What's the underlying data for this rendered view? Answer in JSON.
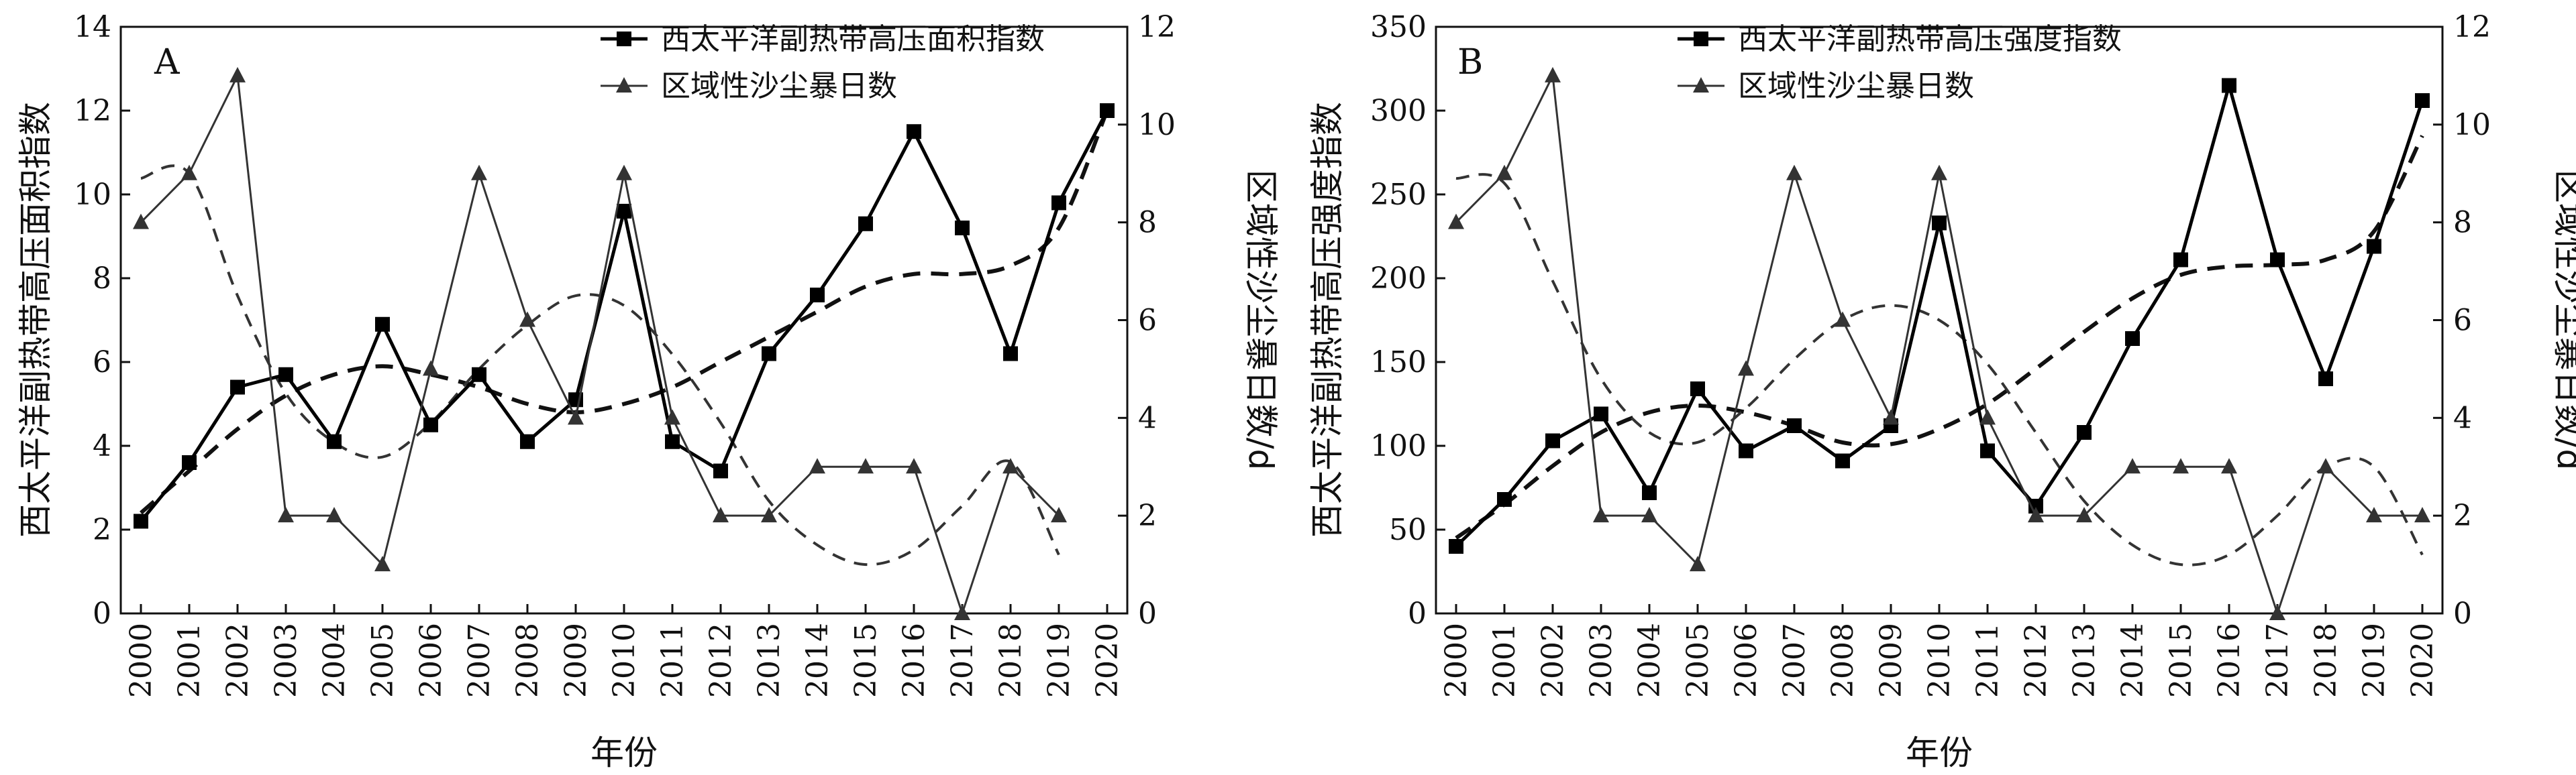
{
  "chart_data": [
    {
      "type": "line",
      "panel_label": "A",
      "title": "",
      "xlabel": "年份",
      "ylabel": "西太平洋副热带高压面积指数",
      "y2label": "区域性沙尘暴日数/d",
      "categories": [
        "2000",
        "2001",
        "2002",
        "2003",
        "2004",
        "2005",
        "2006",
        "2007",
        "2008",
        "2009",
        "2010",
        "2011",
        "2012",
        "2013",
        "2014",
        "2015",
        "2016",
        "2017",
        "2018",
        "2019",
        "2020"
      ],
      "ylim": [
        0,
        14
      ],
      "yticks": [
        0,
        2,
        4,
        6,
        8,
        10,
        12,
        14
      ],
      "y2lim": [
        0,
        12
      ],
      "y2ticks": [
        0,
        2,
        4,
        6,
        8,
        10,
        12
      ],
      "legend_position": "top-center",
      "grid": false,
      "series": [
        {
          "name": "西太平洋副热带高压面积指数",
          "axis": "left",
          "marker": "square",
          "color": "#000000",
          "values": [
            2.2,
            3.6,
            5.4,
            5.7,
            4.1,
            6.9,
            4.5,
            5.7,
            4.1,
            5.1,
            9.6,
            4.1,
            3.4,
            6.2,
            7.6,
            9.3,
            11.5,
            9.2,
            6.2,
            9.8,
            12.0
          ]
        },
        {
          "name": "区域性沙尘暴日数",
          "axis": "right",
          "marker": "triangle",
          "color": "#333333",
          "values": [
            8,
            9,
            11,
            2,
            2,
            1,
            5,
            9,
            6,
            4,
            9,
            4,
            2,
            2,
            3,
            3,
            3,
            0,
            3,
            2,
            null
          ]
        }
      ],
      "trend_lines": [
        {
          "axis": "left",
          "style": "dashed",
          "color": "#111111",
          "stroke": "thick",
          "values": [
            2.4,
            3.4,
            4.4,
            5.2,
            5.7,
            5.9,
            5.7,
            5.4,
            5.0,
            4.8,
            5.0,
            5.4,
            6.0,
            6.6,
            7.2,
            7.8,
            8.1,
            8.1,
            8.3,
            9.2,
            12.0
          ]
        },
        {
          "axis": "right",
          "style": "dashed",
          "color": "#333333",
          "stroke": "thin",
          "values": [
            8.9,
            9.0,
            6.5,
            4.5,
            3.5,
            3.2,
            3.9,
            5.0,
            5.9,
            6.5,
            6.3,
            5.3,
            3.9,
            2.3,
            1.4,
            1.0,
            1.3,
            2.2,
            3.1,
            1.2,
            null
          ]
        }
      ]
    },
    {
      "type": "line",
      "panel_label": "B",
      "title": "",
      "xlabel": "年份",
      "ylabel": "西太平洋副热带高压强度指数",
      "y2label": "区域性沙尘暴日数/d",
      "categories": [
        "2000",
        "2001",
        "2002",
        "2003",
        "2004",
        "2005",
        "2006",
        "2007",
        "2008",
        "2009",
        "2010",
        "2011",
        "2012",
        "2013",
        "2014",
        "2015",
        "2016",
        "2017",
        "2018",
        "2019",
        "2020"
      ],
      "ylim": [
        0,
        350
      ],
      "yticks": [
        0,
        50,
        100,
        150,
        200,
        250,
        300,
        350
      ],
      "y2lim": [
        0,
        12
      ],
      "y2ticks": [
        0,
        2,
        4,
        6,
        8,
        10,
        12
      ],
      "legend_position": "top-center",
      "grid": false,
      "series": [
        {
          "name": "西太平洋副热带高压强度指数",
          "axis": "left",
          "marker": "square",
          "color": "#000000",
          "values": [
            40,
            68,
            103,
            119,
            72,
            134,
            97,
            112,
            91,
            112,
            233,
            97,
            64,
            108,
            164,
            211,
            315,
            211,
            140,
            219,
            306
          ]
        },
        {
          "name": "区域性沙尘暴日数",
          "axis": "right",
          "marker": "triangle",
          "color": "#333333",
          "values": [
            8,
            9,
            11,
            2,
            2,
            1,
            5,
            9,
            6,
            4,
            9,
            4,
            2,
            2,
            3,
            3,
            3,
            0,
            3,
            2,
            2
          ]
        }
      ],
      "trend_lines": [
        {
          "axis": "left",
          "style": "dashed",
          "color": "#111111",
          "stroke": "thick",
          "values": [
            45,
            65,
            88,
            108,
            120,
            124,
            120,
            112,
            102,
            101,
            110,
            125,
            146,
            168,
            188,
            202,
            207,
            208,
            211,
            228,
            285
          ]
        },
        {
          "axis": "right",
          "style": "dashed",
          "color": "#333333",
          "stroke": "thin",
          "values": [
            8.9,
            8.8,
            6.8,
            4.8,
            3.7,
            3.5,
            4.2,
            5.2,
            6.0,
            6.3,
            6.0,
            5.1,
            3.7,
            2.3,
            1.4,
            1.0,
            1.2,
            2.0,
            3.0,
            3.0,
            1.2
          ]
        }
      ]
    }
  ]
}
